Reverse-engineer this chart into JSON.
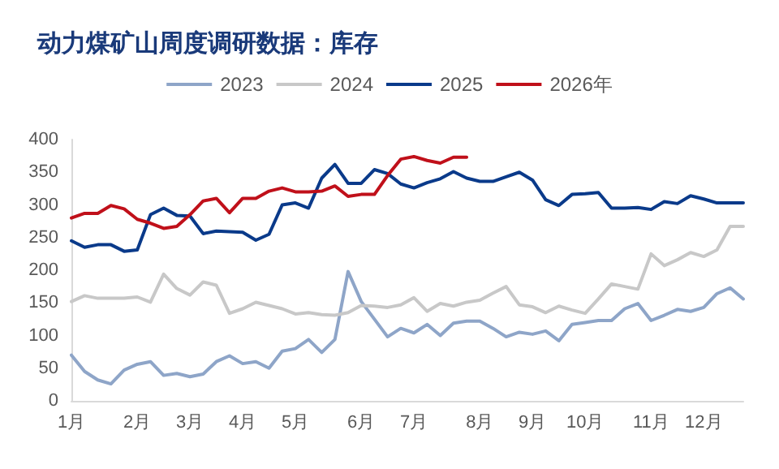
{
  "chart_data": {
    "type": "line",
    "title": "动力煤矿山周度调研数据：库存",
    "categories": [
      "1月",
      null,
      null,
      null,
      null,
      "2月",
      null,
      null,
      null,
      "3月",
      null,
      null,
      null,
      "4月",
      null,
      null,
      null,
      "5月",
      null,
      null,
      null,
      null,
      "6月",
      null,
      null,
      null,
      "7月",
      null,
      null,
      null,
      null,
      "8月",
      null,
      null,
      null,
      "9月",
      null,
      null,
      null,
      "10月",
      null,
      null,
      null,
      null,
      "11月",
      null,
      null,
      null,
      "12月",
      null,
      null,
      null
    ],
    "ylim": [
      0,
      400
    ],
    "yticks": [
      0,
      50,
      100,
      150,
      200,
      250,
      300,
      350,
      400
    ],
    "grid": false,
    "legend": "top",
    "marker": "none",
    "line_style": "solid",
    "series": [
      {
        "name": "2023",
        "color": "#8ea5c8",
        "values": [
          70,
          45,
          32,
          26,
          47,
          56,
          60,
          39,
          42,
          37,
          41,
          60,
          69,
          57,
          60,
          50,
          76,
          80,
          94,
          74,
          94,
          198,
          152,
          125,
          98,
          111,
          104,
          117,
          100,
          119,
          122,
          122,
          111,
          98,
          105,
          102,
          107,
          92,
          117,
          120,
          123,
          123,
          141,
          149,
          123,
          131,
          140,
          137,
          143,
          164,
          173,
          156
        ]
      },
      {
        "name": "2024",
        "color": "#c8c8c8",
        "values": [
          152,
          161,
          157,
          157,
          157,
          159,
          151,
          194,
          172,
          162,
          182,
          177,
          134,
          141,
          151,
          146,
          141,
          133,
          135,
          132,
          131,
          135,
          146,
          145,
          143,
          147,
          158,
          137,
          149,
          145,
          151,
          154,
          165,
          175,
          147,
          144,
          135,
          145,
          139,
          134,
          156,
          179,
          175,
          171,
          225,
          207,
          216,
          227,
          221,
          231,
          267,
          267
        ]
      },
      {
        "name": "2025",
        "color": "#0a3a8a",
        "values": [
          245,
          235,
          239,
          239,
          229,
          231,
          285,
          295,
          284,
          283,
          256,
          260,
          259,
          258,
          246,
          255,
          300,
          303,
          295,
          341,
          362,
          333,
          333,
          354,
          348,
          332,
          326,
          334,
          340,
          351,
          341,
          336,
          336,
          343,
          350,
          338,
          308,
          299,
          316,
          317,
          319,
          295,
          295,
          296,
          293,
          305,
          302,
          314,
          309,
          303,
          303,
          303
        ]
      },
      {
        "name": "2026年",
        "color": "#c0101a",
        "values": [
          280,
          287,
          287,
          299,
          294,
          278,
          272,
          264,
          267,
          285,
          306,
          310,
          288,
          310,
          310,
          321,
          326,
          320,
          320,
          321,
          329,
          313,
          316,
          316,
          345,
          370,
          374,
          368,
          364,
          373,
          373,
          null,
          null,
          null,
          null,
          null,
          null,
          null,
          null,
          null,
          null,
          null,
          null,
          null,
          null,
          null,
          null,
          null,
          null,
          null,
          null,
          null
        ]
      }
    ]
  }
}
